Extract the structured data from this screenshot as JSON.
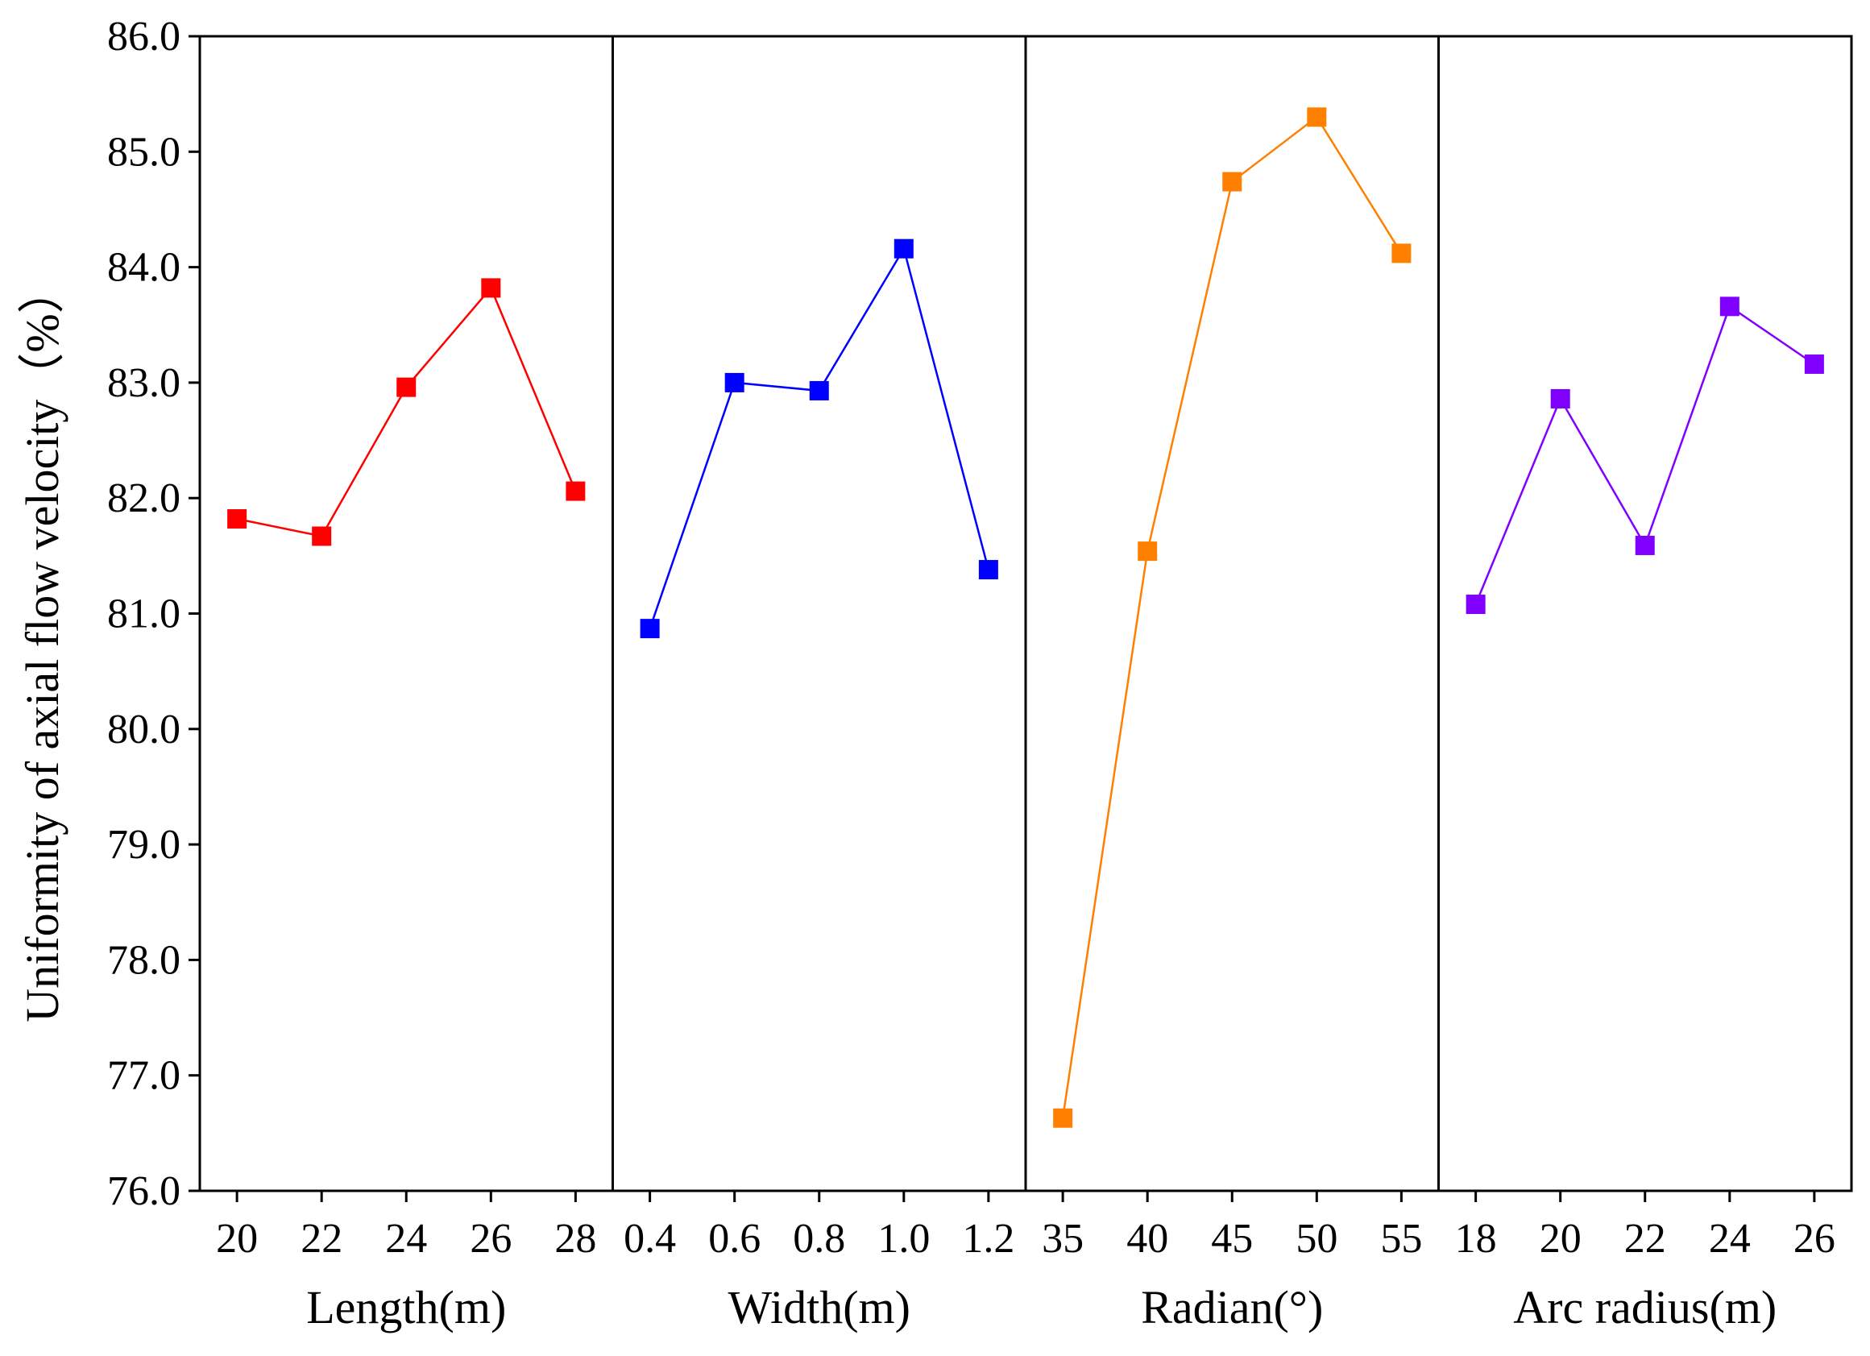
{
  "chart_data": {
    "type": "line",
    "ylabel": "Uniformity of axial flow velocity（%）",
    "ylim": [
      76.0,
      86.0
    ],
    "yticks": [
      "76.0",
      "77.0",
      "78.0",
      "79.0",
      "80.0",
      "81.0",
      "82.0",
      "83.0",
      "84.0",
      "85.0",
      "86.0"
    ],
    "grid": false,
    "panels": [
      {
        "xlabel": "Length(m)",
        "categories": [
          "20",
          "22",
          "24",
          "26",
          "28"
        ],
        "values": [
          81.82,
          81.67,
          82.96,
          83.82,
          82.06
        ],
        "color": "#ff0000"
      },
      {
        "xlabel": "Width(m)",
        "categories": [
          "0.4",
          "0.6",
          "0.8",
          "1.0",
          "1.2"
        ],
        "values": [
          80.87,
          83.0,
          82.93,
          84.16,
          81.38
        ],
        "color": "#0000ff"
      },
      {
        "xlabel": "Radian(°)",
        "categories": [
          "35",
          "40",
          "45",
          "50",
          "55"
        ],
        "values": [
          76.63,
          81.54,
          84.74,
          85.3,
          84.12
        ],
        "color": "#ff8000"
      },
      {
        "xlabel": "Arc radius(m)",
        "categories": [
          "18",
          "20",
          "22",
          "24",
          "26"
        ],
        "values": [
          81.08,
          82.86,
          81.59,
          83.66,
          83.16
        ],
        "color": "#8000ff"
      }
    ]
  }
}
